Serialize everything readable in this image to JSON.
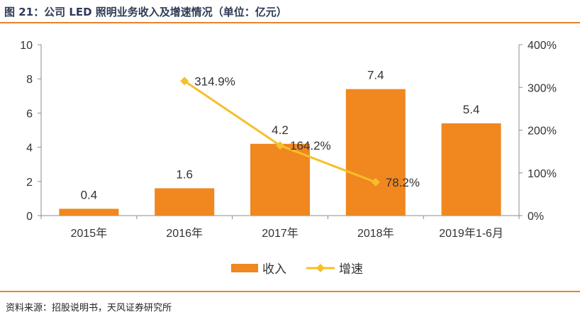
{
  "header": {
    "title": "图 21：公司 LED 照明业务收入及增速情况（单位：亿元）"
  },
  "footer": {
    "source": "资料来源：招股说明书，天风证券研究所"
  },
  "colors": {
    "bar": "#f0871f",
    "line": "#f5c02b",
    "rule": "#e8822a",
    "axis": "#8c8c8c",
    "text": "#333333"
  },
  "chart_data": {
    "type": "bar",
    "categories": [
      "2015年",
      "2016年",
      "2017年",
      "2018年",
      "2019年1-6月"
    ],
    "series": [
      {
        "name": "收入",
        "type": "bar",
        "axis": "left",
        "values": [
          0.4,
          1.6,
          4.2,
          7.4,
          5.4
        ],
        "labels": [
          "0.4",
          "1.6",
          "4.2",
          "7.4",
          "5.4"
        ]
      },
      {
        "name": "增速",
        "type": "line",
        "axis": "right",
        "values": [
          null,
          314.9,
          164.2,
          78.2,
          null
        ],
        "labels": [
          "",
          "314.9%",
          "164.2%",
          "78.2%",
          ""
        ]
      }
    ],
    "y_left": {
      "ylim": [
        0,
        10
      ],
      "ticks": [
        "0",
        "2",
        "4",
        "6",
        "8",
        "10"
      ]
    },
    "y_right": {
      "ylim": [
        0,
        400
      ],
      "ticks": [
        "0%",
        "100%",
        "200%",
        "300%",
        "400%"
      ]
    },
    "legend": {
      "position": "bottom",
      "items": [
        "收入",
        "增速"
      ]
    },
    "grid": false
  }
}
